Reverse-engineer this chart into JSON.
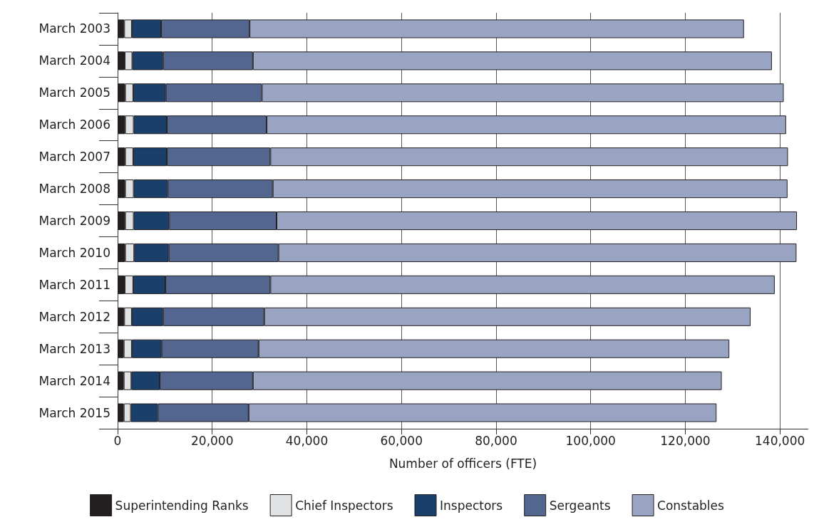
{
  "chart_data": {
    "type": "bar",
    "orientation": "horizontal",
    "stacked": true,
    "xlabel": "Number of officers (FTE)",
    "categories": [
      "March 2003",
      "March 2004",
      "March 2005",
      "March 2006",
      "March 2007",
      "March 2008",
      "March 2009",
      "March 2010",
      "March 2011",
      "March 2012",
      "March 2013",
      "March 2014",
      "March 2015"
    ],
    "series": [
      {
        "name": "Superintending Ranks",
        "color": "#231f20",
        "values": [
          1400,
          1500,
          1600,
          1600,
          1600,
          1600,
          1600,
          1600,
          1500,
          1400,
          1300,
          1300,
          1300
        ]
      },
      {
        "name": "Chief Inspectors",
        "color": "#e1e2e4",
        "values": [
          1600,
          1600,
          1700,
          1800,
          1700,
          1800,
          1800,
          1900,
          1800,
          1600,
          1700,
          1600,
          1500
        ]
      },
      {
        "name": "Inspectors",
        "color": "#1b3f6b",
        "values": [
          6200,
          6500,
          6900,
          7000,
          7100,
          7200,
          7500,
          7300,
          6800,
          6600,
          6300,
          6000,
          5700
        ]
      },
      {
        "name": "Sergeants",
        "color": "#52668f",
        "values": [
          18700,
          19000,
          20300,
          21100,
          21900,
          22200,
          22700,
          23200,
          22200,
          21400,
          20500,
          19700,
          19200
        ]
      },
      {
        "name": "Constables",
        "color": "#98a4c2",
        "values": [
          104500,
          109700,
          110300,
          109800,
          109400,
          108800,
          110000,
          109500,
          106600,
          102800,
          99500,
          99100,
          98900
        ]
      }
    ],
    "xlim": [
      0,
      146000
    ],
    "xticks": [
      {
        "value": 0,
        "label": "0"
      },
      {
        "value": 20000,
        "label": "20,000"
      },
      {
        "value": 40000,
        "label": "40,000"
      },
      {
        "value": 60000,
        "label": "60,000"
      },
      {
        "value": 80000,
        "label": "80,000"
      },
      {
        "value": 100000,
        "label": "100,000"
      },
      {
        "value": 120000,
        "label": "120,000"
      },
      {
        "value": 140000,
        "label": "140,000"
      }
    ],
    "grid": "x",
    "legend": "bottom"
  }
}
